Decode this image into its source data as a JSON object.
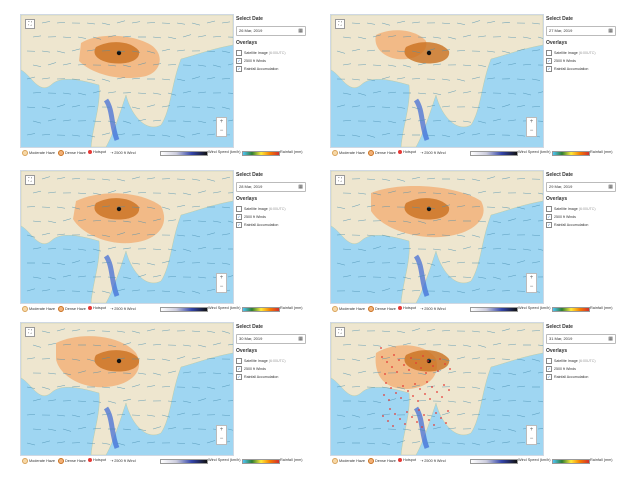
{
  "panels": [
    {
      "date": "26 Mar, 2019",
      "overlays": [
        "Satellite Image (6:00UTC)",
        "2500 ft Winds",
        "Rainfall Accumulation"
      ],
      "checked": [
        false,
        true,
        true
      ]
    },
    {
      "date": "27 Mar, 2019",
      "overlays": [
        "Satellite Image (6:00UTC)",
        "2500 ft Winds",
        "Rainfall Accumulation"
      ],
      "checked": [
        false,
        true,
        true
      ]
    },
    {
      "date": "28 Mar, 2019",
      "overlays": [
        "Satellite Image (6:00UTC)",
        "2500 ft Winds",
        "Rainfall Accumulation"
      ],
      "checked": [
        false,
        true,
        true
      ]
    },
    {
      "date": "29 Mar, 2019",
      "overlays": [
        "Satellite Image (6:00UTC)",
        "2500 ft Winds",
        "Rainfall Accumulation"
      ],
      "checked": [
        false,
        true,
        true
      ]
    },
    {
      "date": "30 Mar, 2019",
      "overlays": [
        "Satellite Image (6:00UTC)",
        "2500 ft Winds",
        "Rainfall Accumulation"
      ],
      "checked": [
        false,
        true,
        true
      ]
    },
    {
      "date": "31 Mar, 2019",
      "overlays": [
        "Satellite Image (6:00UTC)",
        "2500 ft Winds",
        "Rainfall Accumulation"
      ],
      "checked": [
        false,
        true,
        true
      ]
    }
  ],
  "labels": {
    "select_date": "Select Date",
    "overlays": "Overlays",
    "calendar_icon": "calendar-icon",
    "zoom_in": "+",
    "zoom_out": "−",
    "fullscreen": "⛶"
  },
  "legend": {
    "moderate_haze": "Moderate Haze",
    "dense_haze": "Dense Haze",
    "hotspot": "Hotspot",
    "wind": "2500 ft Wind",
    "wind_speed": "Wind Speed (km/h)",
    "rainfall": "Rainfall (mm)"
  },
  "colors": {
    "sea": "#9fd6f2",
    "land": "#eee6cf",
    "haze_moderate": "#f2b27a",
    "haze_dense": "#c9711f",
    "hotspot": "#e53935",
    "rain": "#3a66d6"
  }
}
